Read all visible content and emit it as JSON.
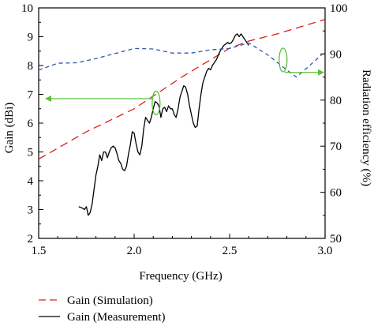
{
  "chart_data": {
    "type": "line",
    "title": "",
    "xlabel": "Frequency (GHz)",
    "ylabel_left": "Gain (dBi)",
    "ylabel_right": "Radiation efficiency (%)",
    "xlim": [
      1.5,
      3.0
    ],
    "ylim_left": [
      2,
      10
    ],
    "ylim_right": [
      50,
      100
    ],
    "x_ticks": [
      "1.5",
      "2.0",
      "2.5",
      "3.0"
    ],
    "y_left_ticks": [
      "2",
      "3",
      "4",
      "5",
      "6",
      "7",
      "8",
      "9",
      "10"
    ],
    "y_right_ticks": [
      "50",
      "60",
      "70",
      "80",
      "90",
      "100"
    ],
    "grid": false,
    "legend_position": "bottom-left",
    "series": [
      {
        "name": "Gain (Simulation)",
        "axis": "left",
        "style": "dashed",
        "color": "#e0201b",
        "x": [
          1.5,
          1.75,
          2.0,
          2.25,
          2.5,
          2.6,
          2.75,
          3.0
        ],
        "values": [
          4.75,
          5.7,
          6.5,
          7.6,
          8.6,
          8.85,
          9.1,
          9.6
        ]
      },
      {
        "name": "Gain (Measurement)",
        "axis": "left",
        "style": "solid",
        "color": "#000000",
        "x": [
          1.71,
          1.73,
          1.74,
          1.75,
          1.76,
          1.77,
          1.78,
          1.79,
          1.8,
          1.81,
          1.82,
          1.83,
          1.84,
          1.85,
          1.86,
          1.87,
          1.88,
          1.89,
          1.9,
          1.91,
          1.92,
          1.93,
          1.94,
          1.95,
          1.96,
          1.97,
          1.98,
          1.99,
          2.0,
          2.01,
          2.02,
          2.03,
          2.04,
          2.05,
          2.06,
          2.07,
          2.08,
          2.09,
          2.1,
          2.11,
          2.12,
          2.13,
          2.14,
          2.15,
          2.16,
          2.17,
          2.18,
          2.19,
          2.2,
          2.21,
          2.22,
          2.23,
          2.24,
          2.25,
          2.26,
          2.27,
          2.28,
          2.29,
          2.3,
          2.31,
          2.32,
          2.33,
          2.34,
          2.35,
          2.36,
          2.37,
          2.38,
          2.39,
          2.4,
          2.41,
          2.42,
          2.43,
          2.44,
          2.45,
          2.46,
          2.47,
          2.48,
          2.49,
          2.5,
          2.51,
          2.52,
          2.53,
          2.54,
          2.55,
          2.56,
          2.57,
          2.58,
          2.59,
          2.6
        ],
        "values": [
          3.1,
          3.05,
          3.0,
          3.1,
          2.8,
          2.9,
          3.2,
          3.7,
          4.2,
          4.5,
          4.9,
          4.7,
          5.0,
          5.0,
          4.8,
          5.0,
          5.15,
          5.2,
          5.15,
          4.95,
          4.7,
          4.6,
          4.4,
          4.35,
          4.5,
          4.9,
          5.25,
          5.7,
          5.65,
          5.3,
          5.0,
          4.9,
          5.2,
          5.8,
          6.2,
          6.1,
          6.0,
          6.2,
          6.5,
          6.75,
          6.7,
          6.6,
          6.2,
          6.5,
          6.55,
          6.4,
          6.6,
          6.5,
          6.5,
          6.3,
          6.2,
          6.5,
          6.9,
          7.1,
          7.3,
          7.25,
          7.0,
          6.6,
          6.3,
          6.0,
          5.85,
          5.9,
          6.5,
          7.0,
          7.4,
          7.6,
          7.8,
          7.9,
          7.85,
          8.0,
          8.1,
          8.2,
          8.35,
          8.5,
          8.6,
          8.7,
          8.75,
          8.8,
          8.75,
          8.8,
          8.9,
          9.05,
          9.1,
          9.0,
          9.1,
          9.0,
          8.9,
          8.8,
          8.7
        ]
      },
      {
        "name": "Radiation efficiency",
        "axis": "right",
        "style": "dashed",
        "color": "#3455b0",
        "x": [
          1.5,
          1.6,
          1.7,
          1.8,
          1.9,
          2.0,
          2.1,
          2.2,
          2.3,
          2.4,
          2.5,
          2.6,
          2.7,
          2.8,
          2.85,
          2.9,
          3.0
        ],
        "values": [
          86.5,
          88.0,
          88.1,
          89.0,
          90.1,
          91.2,
          91.1,
          90.2,
          90.2,
          90.9,
          91.2,
          92.4,
          89.8,
          86.5,
          85.0,
          86.8,
          90.5
        ]
      }
    ],
    "annotations": [
      {
        "type": "arrow",
        "target_axis": "left",
        "color": "#5bbf3a"
      },
      {
        "type": "arrow",
        "target_axis": "right",
        "color": "#5bbf3a"
      }
    ]
  }
}
